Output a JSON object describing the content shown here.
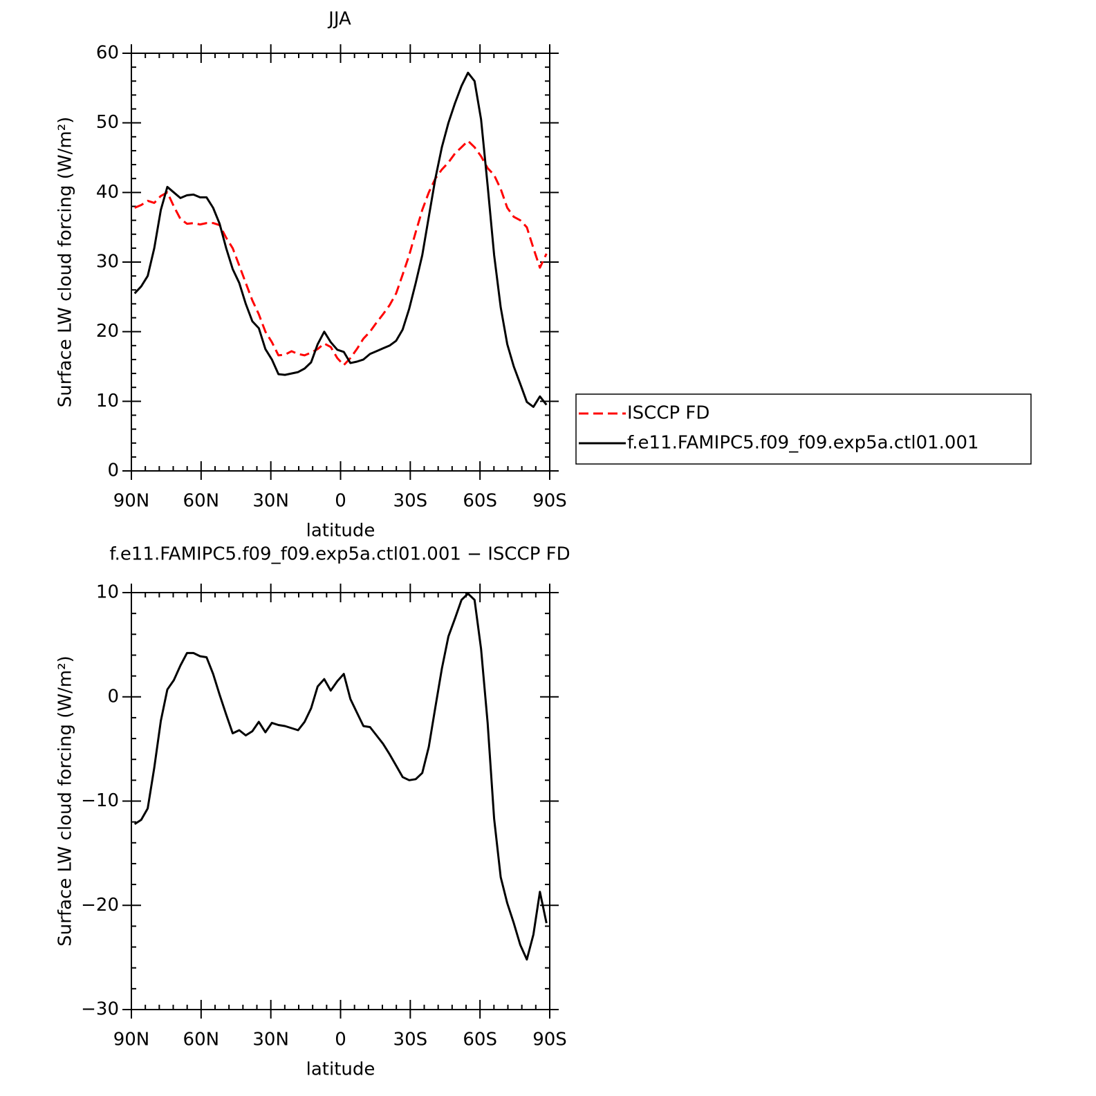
{
  "chart_data": [
    {
      "type": "line",
      "title": "JJA",
      "x_label": "latitude",
      "y_label": "Surface LW cloud forcing (W/m²)",
      "x": [
        88.59,
        85.78,
        82.97,
        80.16,
        77.34,
        74.53,
        71.72,
        68.91,
        66.09,
        63.28,
        60.47,
        57.66,
        54.84,
        52.03,
        49.22,
        46.41,
        43.59,
        40.78,
        37.97,
        35.16,
        32.34,
        29.53,
        26.72,
        23.91,
        21.09,
        18.28,
        15.47,
        12.66,
        9.84,
        7.03,
        4.22,
        1.41,
        -1.41,
        -4.22,
        -7.03,
        -9.84,
        -12.66,
        -15.47,
        -18.28,
        -21.09,
        -23.91,
        -26.72,
        -29.53,
        -32.34,
        -35.16,
        -37.97,
        -40.78,
        -43.59,
        -46.41,
        -49.22,
        -52.03,
        -54.84,
        -57.66,
        -60.47,
        -63.28,
        -66.09,
        -68.91,
        -71.72,
        -74.53,
        -77.34,
        -80.16,
        -82.97,
        -85.78,
        -88.59
      ],
      "series": [
        {
          "name": "ISCCP FD",
          "color": "#ff0000",
          "style": "dashed",
          "values": [
            37.8,
            38.2,
            38.8,
            38.5,
            39.5,
            40,
            38,
            36.2,
            35.5,
            35.6,
            35.4,
            35.6,
            35.6,
            35.3,
            33.5,
            32,
            29.5,
            27,
            24.5,
            22.5,
            20,
            18.5,
            16.6,
            16.7,
            17.2,
            16.8,
            16.6,
            17,
            17.5,
            18.3,
            17.8,
            16.2,
            15.2,
            16.2,
            17.5,
            19,
            20,
            21.3,
            22.5,
            23.8,
            25.5,
            28.2,
            31,
            34.3,
            37.5,
            40,
            42,
            43.3,
            44.3,
            45.6,
            46.5,
            47.4,
            46.5,
            45.2,
            43.5,
            42.5,
            40.5,
            37.8,
            36.5,
            36,
            35,
            32,
            29.2,
            31.2
          ]
        },
        {
          "name": "f.e11.FAMIPC5.f09_f09.exp5a.ctl01.001",
          "color": "#000000",
          "style": "solid",
          "values": [
            25.5,
            26.5,
            28,
            32,
            37.5,
            40.8,
            40,
            39.2,
            39.6,
            39.7,
            39.3,
            39.3,
            37.8,
            35.5,
            32,
            29,
            27,
            24,
            21.5,
            20.5,
            17.5,
            16,
            13.9,
            13.8,
            14,
            14.2,
            14.7,
            15.6,
            18.2,
            20,
            18.5,
            17.4,
            17.1,
            15.5,
            15.7,
            16,
            16.8,
            17.2,
            17.6,
            18,
            18.7,
            20.3,
            23.3,
            27,
            31,
            36.5,
            42,
            46.5,
            50,
            52.8,
            55.3,
            57.2,
            56,
            50.5,
            41,
            31,
            23.5,
            18.2,
            15,
            12.5,
            9.9,
            9.2,
            10.7,
            9.5
          ]
        }
      ],
      "xlim": [
        90,
        -90
      ],
      "xticks": [
        {
          "value": 90,
          "label": "90N"
        },
        {
          "value": 60,
          "label": "60N"
        },
        {
          "value": 30,
          "label": "30N"
        },
        0,
        {
          "value": -30,
          "label": "30S"
        },
        {
          "value": -60,
          "label": "60S"
        },
        {
          "value": -90,
          "label": "90S"
        }
      ],
      "ylim": [
        0,
        60
      ],
      "yticks": [
        0,
        10,
        20,
        30,
        40,
        50,
        60
      ],
      "legend": "outside-right"
    },
    {
      "type": "line",
      "title": "f.e11.FAMIPC5.f09_f09.exp5a.ctl01.001 − ISCCP FD",
      "x_label": "latitude",
      "y_label": "Surface LW cloud forcing (W/m²)",
      "x": [
        88.59,
        85.78,
        82.97,
        80.16,
        77.34,
        74.53,
        71.72,
        68.91,
        66.09,
        63.28,
        60.47,
        57.66,
        54.84,
        52.03,
        49.22,
        46.41,
        43.59,
        40.78,
        37.97,
        35.16,
        32.34,
        29.53,
        26.72,
        23.91,
        21.09,
        18.28,
        15.47,
        12.66,
        9.84,
        7.03,
        4.22,
        1.41,
        -1.41,
        -4.22,
        -7.03,
        -9.84,
        -12.66,
        -15.47,
        -18.28,
        -21.09,
        -23.91,
        -26.72,
        -29.53,
        -32.34,
        -35.16,
        -37.97,
        -40.78,
        -43.59,
        -46.41,
        -49.22,
        -52.03,
        -54.84,
        -57.66,
        -60.47,
        -63.28,
        -66.09,
        -68.91,
        -71.72,
        -74.53,
        -77.34,
        -80.16,
        -82.97,
        -85.78,
        -88.59
      ],
      "color": "#000000",
      "values": [
        -12.2,
        -11.8,
        -10.7,
        -6.8,
        -2.3,
        0.7,
        1.6,
        3,
        4.2,
        4.2,
        3.9,
        3.8,
        2.2,
        0.2,
        -1.7,
        -3.5,
        -3.2,
        -3.7,
        -3.3,
        -2.4,
        -3.4,
        -2.5,
        -2.7,
        -2.8,
        -3,
        -3.2,
        -2.4,
        -1.1,
        1,
        1.7,
        0.6,
        1.5,
        2.2,
        -0.2,
        -1.5,
        -2.8,
        -2.9,
        -3.7,
        -4.5,
        -5.5,
        -6.6,
        -7.7,
        -8,
        -7.9,
        -7.3,
        -4.8,
        -1,
        2.7,
        5.8,
        7.5,
        9.3,
        9.9,
        9.3,
        4.6,
        -2.5,
        -11.7,
        -17.3,
        -19.8,
        -21.7,
        -23.8,
        -25.2,
        -22.8,
        -18.7,
        -21.7
      ],
      "xlim": [
        90,
        -90
      ],
      "xticks": [
        {
          "value": 90,
          "label": "90N"
        },
        {
          "value": 60,
          "label": "60N"
        },
        {
          "value": 30,
          "label": "30N"
        },
        0,
        {
          "value": -30,
          "label": "30S"
        },
        {
          "value": -60,
          "label": "60S"
        },
        {
          "value": -90,
          "label": "90S"
        }
      ],
      "ylim": [
        -30,
        10
      ],
      "yticks": [
        {
          "value": -30,
          "label": "−30"
        },
        {
          "value": -20,
          "label": "−20"
        },
        {
          "value": -10,
          "label": "−10"
        },
        0,
        10
      ]
    }
  ]
}
